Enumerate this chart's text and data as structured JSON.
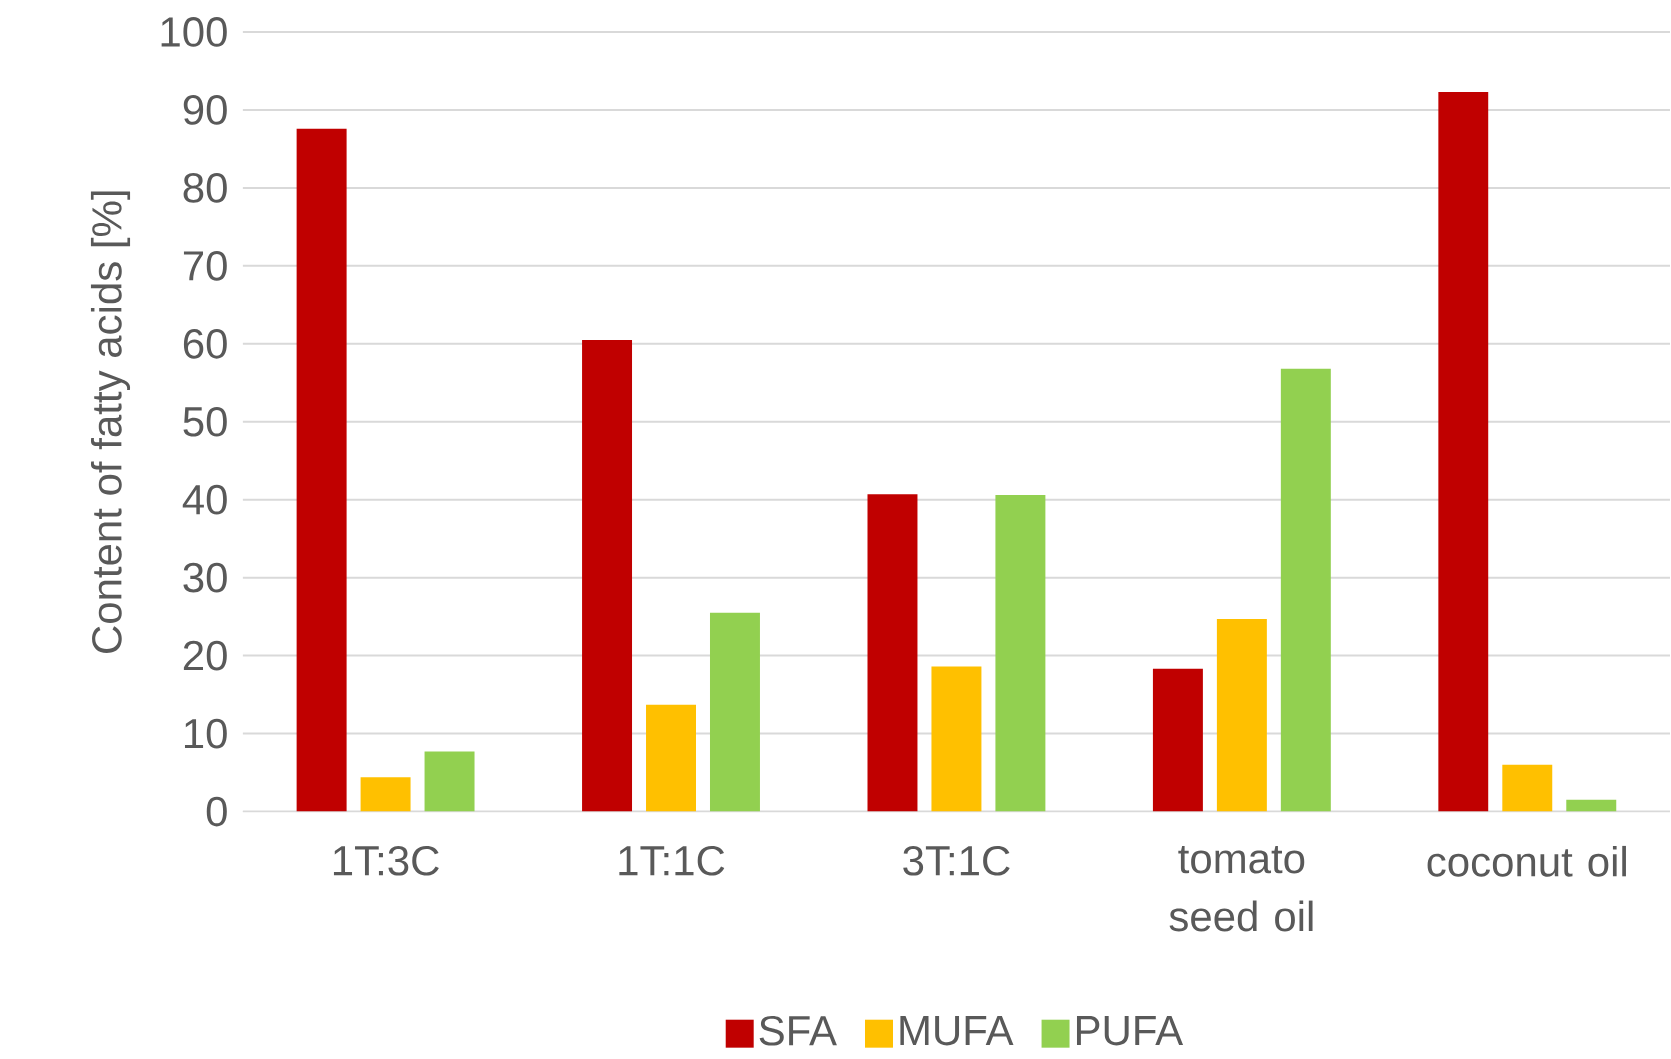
{
  "chart_data": {
    "type": "bar",
    "ylabel": "Content of fatty acids [%]",
    "categories": [
      "1T:3C",
      "1T:1C",
      "3T:1C",
      "tomato seed oil",
      "coconut oil"
    ],
    "series": [
      {
        "name": "SFA",
        "color": "#c00000",
        "values": [
          87.6,
          60.5,
          40.7,
          18.3,
          92.3
        ]
      },
      {
        "name": "MUFA",
        "color": "#ffc000",
        "values": [
          4.4,
          13.7,
          18.6,
          24.7,
          6.0
        ]
      },
      {
        "name": "PUFA",
        "color": "#92d050",
        "values": [
          7.7,
          25.5,
          40.6,
          56.8,
          1.5
        ]
      }
    ],
    "ylim": [
      0,
      100
    ],
    "yticks": [
      0,
      10,
      20,
      30,
      40,
      50,
      60,
      70,
      80,
      90,
      100
    ],
    "grid": "y",
    "legend": "bottom"
  }
}
